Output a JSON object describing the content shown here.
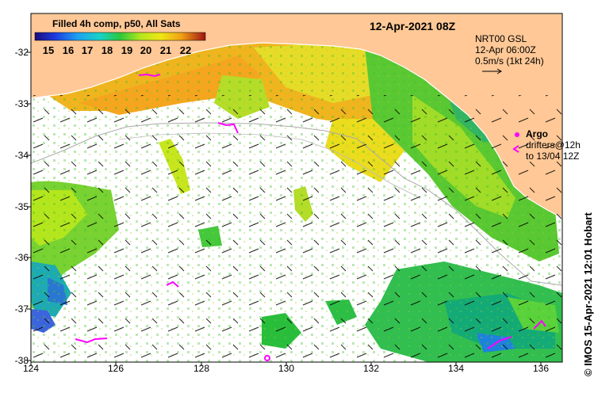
{
  "map": {
    "title": "12-Apr-2021 08Z",
    "product_label": "Filled 4h comp, p50, All Sats",
    "credit": "© IMOS 15-Apr-2021 12:01 Hobart",
    "land_color": "#FFC896",
    "nodata_color": "#ffffff"
  },
  "colorbar": {
    "ticks": [
      "15",
      "16",
      "17",
      "18",
      "19",
      "20",
      "21",
      "22"
    ],
    "min": 14.3,
    "max": 22.7,
    "unit": "°C"
  },
  "current_legend": {
    "line1": "NRT00 GSL",
    "line2": "12-Apr 06:00Z",
    "line3": "0.5m/s (1kt 24h)"
  },
  "argo_legend": {
    "argo_label": "Argo",
    "drifter_label": "drifters@12h",
    "drifter_date": "to 13/04 12Z",
    "argo_color": "#ff00ff"
  },
  "axes": {
    "lon_ticks": [
      "124",
      "126",
      "128",
      "130",
      "132",
      "134",
      "136"
    ],
    "lat_ticks": [
      "-32",
      "-33",
      "-34",
      "-35",
      "-36",
      "-37",
      "-38"
    ],
    "lon_range": [
      124,
      136.5
    ],
    "lat_range": [
      -38.1,
      -31.4
    ]
  },
  "icons": {
    "argo_float": "argo-float-icon",
    "drifter": "drifter-icon",
    "current_arrow": "current-arrow-icon"
  }
}
